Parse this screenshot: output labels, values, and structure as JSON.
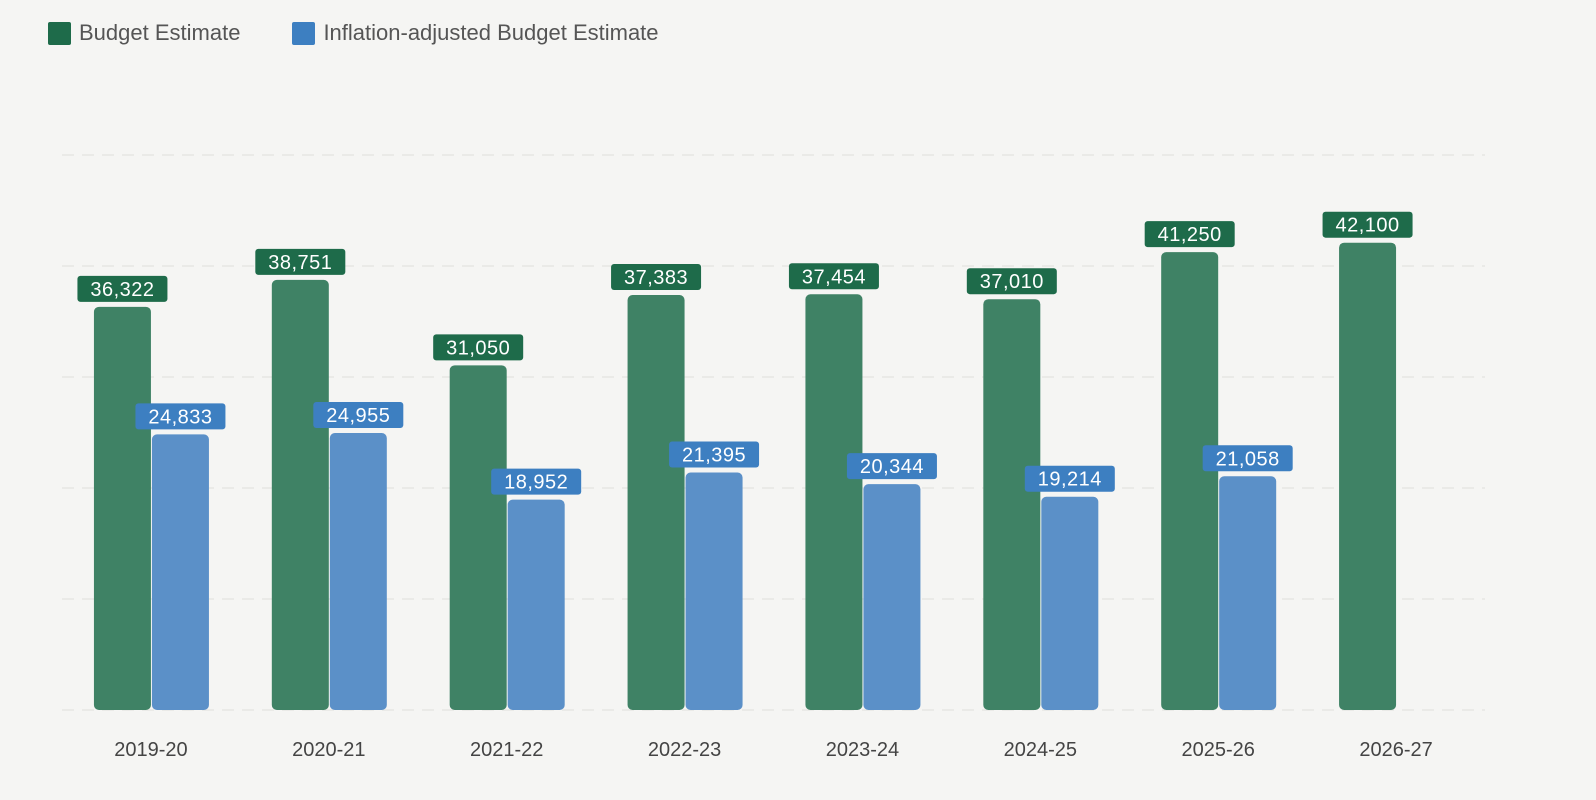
{
  "chart_data": {
    "type": "bar",
    "title": "",
    "xlabel": "",
    "ylabel": "",
    "ylim": [
      0,
      50000
    ],
    "grid": true,
    "legend_placement": "top-left",
    "categories": [
      "2019-20",
      "2020-21",
      "2021-22",
      "2022-23",
      "2023-24",
      "2024-25",
      "2025-26",
      "2026-27"
    ],
    "series": [
      {
        "name": "Budget Estimate",
        "color": "#1e6b4a",
        "bar_color": "#3f8265",
        "values": [
          36322,
          38751,
          31050,
          37383,
          37454,
          37010,
          41250,
          42100
        ],
        "labels": [
          "36,322",
          "38,751",
          "31,050",
          "37,383",
          "37,454",
          "37,010",
          "41,250",
          "42,100"
        ]
      },
      {
        "name": "Inflation-adjusted Budget Estimate",
        "color": "#3d7fc1",
        "bar_color": "#5b90c8",
        "values": [
          24833,
          24955,
          18952,
          21395,
          20344,
          19214,
          21058,
          null
        ],
        "labels": [
          "24,833",
          "24,955",
          "18,952",
          "21,395",
          "20,344",
          "19,214",
          "21,058",
          null
        ]
      }
    ]
  }
}
